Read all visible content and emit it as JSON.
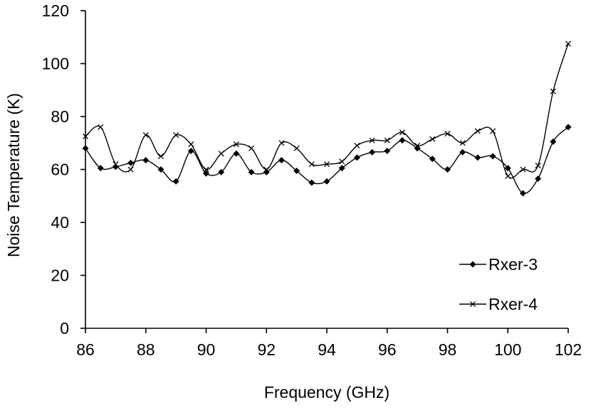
{
  "chart_data": {
    "type": "line",
    "title": "",
    "xlabel": "Frequency (GHz)",
    "ylabel": "Noise Temperature (K)",
    "xlim": [
      86,
      102
    ],
    "ylim": [
      0,
      120
    ],
    "x_ticks": [
      "86",
      "88",
      "90",
      "92",
      "94",
      "96",
      "98",
      "100",
      "102"
    ],
    "y_ticks": [
      "0",
      "20",
      "40",
      "60",
      "80",
      "100",
      "120"
    ],
    "grid": false,
    "smoothed": true,
    "legend_position": "bottom-right",
    "series": [
      {
        "name": "Rxer-3",
        "marker": "diamond",
        "color": "#000000",
        "x": [
          86,
          86.5,
          87,
          87.5,
          88,
          88.5,
          89,
          89.5,
          90,
          90.5,
          91,
          91.5,
          92,
          92.5,
          93,
          93.5,
          94,
          94.5,
          95,
          95.5,
          96,
          96.5,
          97,
          97.5,
          98,
          98.5,
          99,
          99.5,
          100,
          100.5,
          101,
          101.5,
          102
        ],
        "y": [
          68,
          60.5,
          61,
          62.5,
          63.5,
          60,
          55.5,
          67,
          58.5,
          59,
          66,
          59,
          59,
          63.5,
          59.5,
          55,
          55.5,
          60.5,
          64.5,
          66.5,
          67,
          71,
          68,
          64,
          60,
          66.5,
          64.5,
          65,
          60.5,
          51,
          56.5,
          70.5,
          76
        ]
      },
      {
        "name": "Rxer-4",
        "marker": "x",
        "color": "#000000",
        "x": [
          86,
          86.5,
          87,
          87.5,
          88,
          88.5,
          89,
          89.5,
          90,
          90.5,
          91,
          91.5,
          92,
          92.5,
          93,
          93.5,
          94,
          94.5,
          95,
          95.5,
          96,
          96.5,
          97,
          97.5,
          98,
          98.5,
          99,
          99.5,
          100,
          100.5,
          101,
          101.5,
          102
        ],
        "y": [
          72.5,
          76,
          62,
          60,
          73,
          65,
          73,
          69.5,
          60,
          66,
          69.5,
          68,
          60,
          70,
          68,
          62,
          62,
          63,
          69,
          71,
          71,
          74,
          69,
          71.5,
          73.5,
          70,
          74.5,
          74.5,
          57.5,
          60,
          61.5,
          89.5,
          107.5
        ]
      }
    ]
  }
}
